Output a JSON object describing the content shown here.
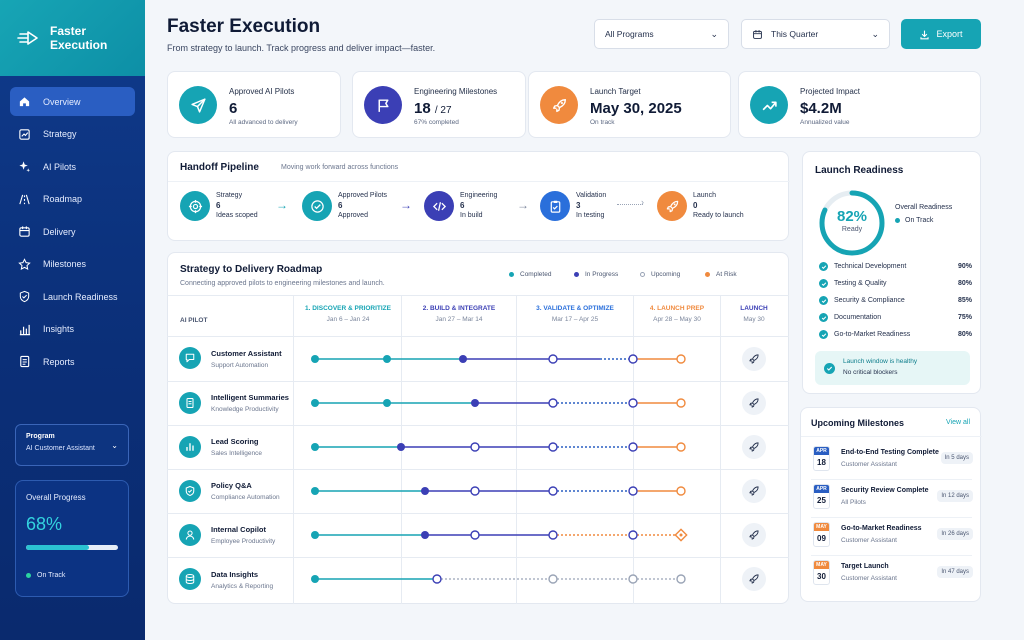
{
  "brand": {
    "name": "Faster Execution"
  },
  "sidebar": {
    "items": [
      "Overview",
      "Strategy",
      "AI Pilots",
      "Roadmap",
      "Delivery",
      "Milestones",
      "Launch Readiness",
      "Insights",
      "Reports"
    ],
    "program": {
      "label": "Program",
      "value": "AI Customer Assistant"
    },
    "overall": {
      "label": "Overall Progress",
      "value": "68%",
      "progress": 0.68,
      "status": "On Track"
    }
  },
  "header": {
    "title": "Faster Execution",
    "subtitle": "From strategy to launch. Track progress and deliver impact—faster.",
    "programs_select": "All Programs",
    "period_select": "This Quarter",
    "export_label": "Export"
  },
  "kpis": [
    {
      "title": "Approved AI Pilots",
      "value": "6",
      "value_suffix": "",
      "sub": "All advanced to delivery",
      "icon": "send-icon",
      "color": "#16a4b4"
    },
    {
      "title": "Engineering Milestones",
      "value": "18",
      "value_suffix": "/ 27",
      "sub": "67% completed",
      "icon": "flag-icon",
      "color": "#3b3fb5"
    },
    {
      "title": "Launch Target",
      "value": "May 30, 2025",
      "value_suffix": "",
      "sub": "On track",
      "icon": "rocket-icon",
      "color": "#f08a3e"
    },
    {
      "title": "Projected Impact",
      "value": "$4.2M",
      "value_suffix": "",
      "sub": "Annualized value",
      "icon": "trend-icon",
      "color": "#16a4b4"
    }
  ],
  "pipeline": {
    "title": "Handoff Pipeline",
    "subtitle": "Moving work forward across functions",
    "stages": [
      {
        "name": "Strategy",
        "count": "6",
        "sub": "Ideas scoped",
        "color": "#16a4b4",
        "icon": "target-icon"
      },
      {
        "name": "Approved Pilots",
        "count": "6",
        "sub": "Approved",
        "color": "#16a4b4",
        "icon": "check-circle-icon"
      },
      {
        "name": "Engineering",
        "count": "6",
        "sub": "In build",
        "color": "#3b3fb5",
        "icon": "code-icon"
      },
      {
        "name": "Validation",
        "count": "3",
        "sub": "In testing",
        "color": "#2a6fdb",
        "icon": "clipboard-icon"
      },
      {
        "name": "Launch",
        "count": "0",
        "sub": "Ready to launch",
        "color": "#f08a3e",
        "icon": "rocket-icon"
      }
    ]
  },
  "roadmap": {
    "title": "Strategy to Delivery Roadmap",
    "subtitle": "Connecting approved pilots to engineering milestones and launch.",
    "legend": [
      {
        "label": "Completed",
        "color": "#16a4b4"
      },
      {
        "label": "In Progress",
        "color": "#3b3fb5"
      },
      {
        "label": "Upcoming",
        "color": "#9aa4b6"
      },
      {
        "label": "At Risk",
        "color": "#f08a3e"
      }
    ],
    "first_col": "AI PILOT",
    "columns": [
      {
        "label": "1. DISCOVER & PRIORITIZE",
        "dates": "Jan 6 – Jan 24",
        "color": "#16a4b4"
      },
      {
        "label": "2. BUILD & INTEGRATE",
        "dates": "Jan 27 – Mar 14",
        "color": "#3b3fb5"
      },
      {
        "label": "3. VALIDATE & OPTIMIZE",
        "dates": "Mar 17 – Apr 25",
        "color": "#2a6fdb"
      },
      {
        "label": "4. LAUNCH PREP",
        "dates": "Apr 28 – May 30",
        "color": "#f08a3e"
      },
      {
        "label": "LAUNCH",
        "dates": "May 30",
        "color": "#3b3fb5"
      }
    ],
    "rows": [
      {
        "name": "Customer Assistant",
        "sub": "Support Automation",
        "icon": "chat-icon"
      },
      {
        "name": "Intelligent Summaries",
        "sub": "Knowledge Productivity",
        "icon": "document-icon"
      },
      {
        "name": "Lead Scoring",
        "sub": "Sales Intelligence",
        "icon": "bar-chart-icon"
      },
      {
        "name": "Policy Q&A",
        "sub": "Compliance Automation",
        "icon": "shield-icon"
      },
      {
        "name": "Internal Copilot",
        "sub": "Employee Productivity",
        "icon": "user-icon"
      },
      {
        "name": "Data Insights",
        "sub": "Analytics & Reporting",
        "icon": "database-icon"
      }
    ]
  },
  "readiness": {
    "title": "Launch Readiness",
    "value": "82%",
    "value_fraction": 0.82,
    "ring_label": "Ready",
    "overall_label": "Overall Readiness",
    "status": "On Track",
    "items": [
      {
        "label": "Technical Development",
        "pct": "90%"
      },
      {
        "label": "Testing & Quality",
        "pct": "80%"
      },
      {
        "label": "Security & Compliance",
        "pct": "85%"
      },
      {
        "label": "Documentation",
        "pct": "75%"
      },
      {
        "label": "Go-to-Market Readiness",
        "pct": "80%"
      }
    ],
    "alert_title": "Launch window is healthy",
    "alert_sub": "No critical blockers"
  },
  "milestones": {
    "title": "Upcoming Milestones",
    "view_all": "View all",
    "items": [
      {
        "month": "APR",
        "day": "18",
        "name": "End-to-End Testing Complete",
        "sub": "Customer Assistant",
        "due": "In 5 days",
        "color": "#2a5ec2"
      },
      {
        "month": "APR",
        "day": "25",
        "name": "Security Review Complete",
        "sub": "All Pilots",
        "due": "In 12 days",
        "color": "#2a5ec2"
      },
      {
        "month": "MAY",
        "day": "09",
        "name": "Go-to-Market Readiness",
        "sub": "Customer Assistant",
        "due": "In 26 days",
        "color": "#f08a3e"
      },
      {
        "month": "MAY",
        "day": "30",
        "name": "Target Launch",
        "sub": "Customer Assistant",
        "due": "In 47 days",
        "color": "#f08a3e"
      }
    ]
  }
}
